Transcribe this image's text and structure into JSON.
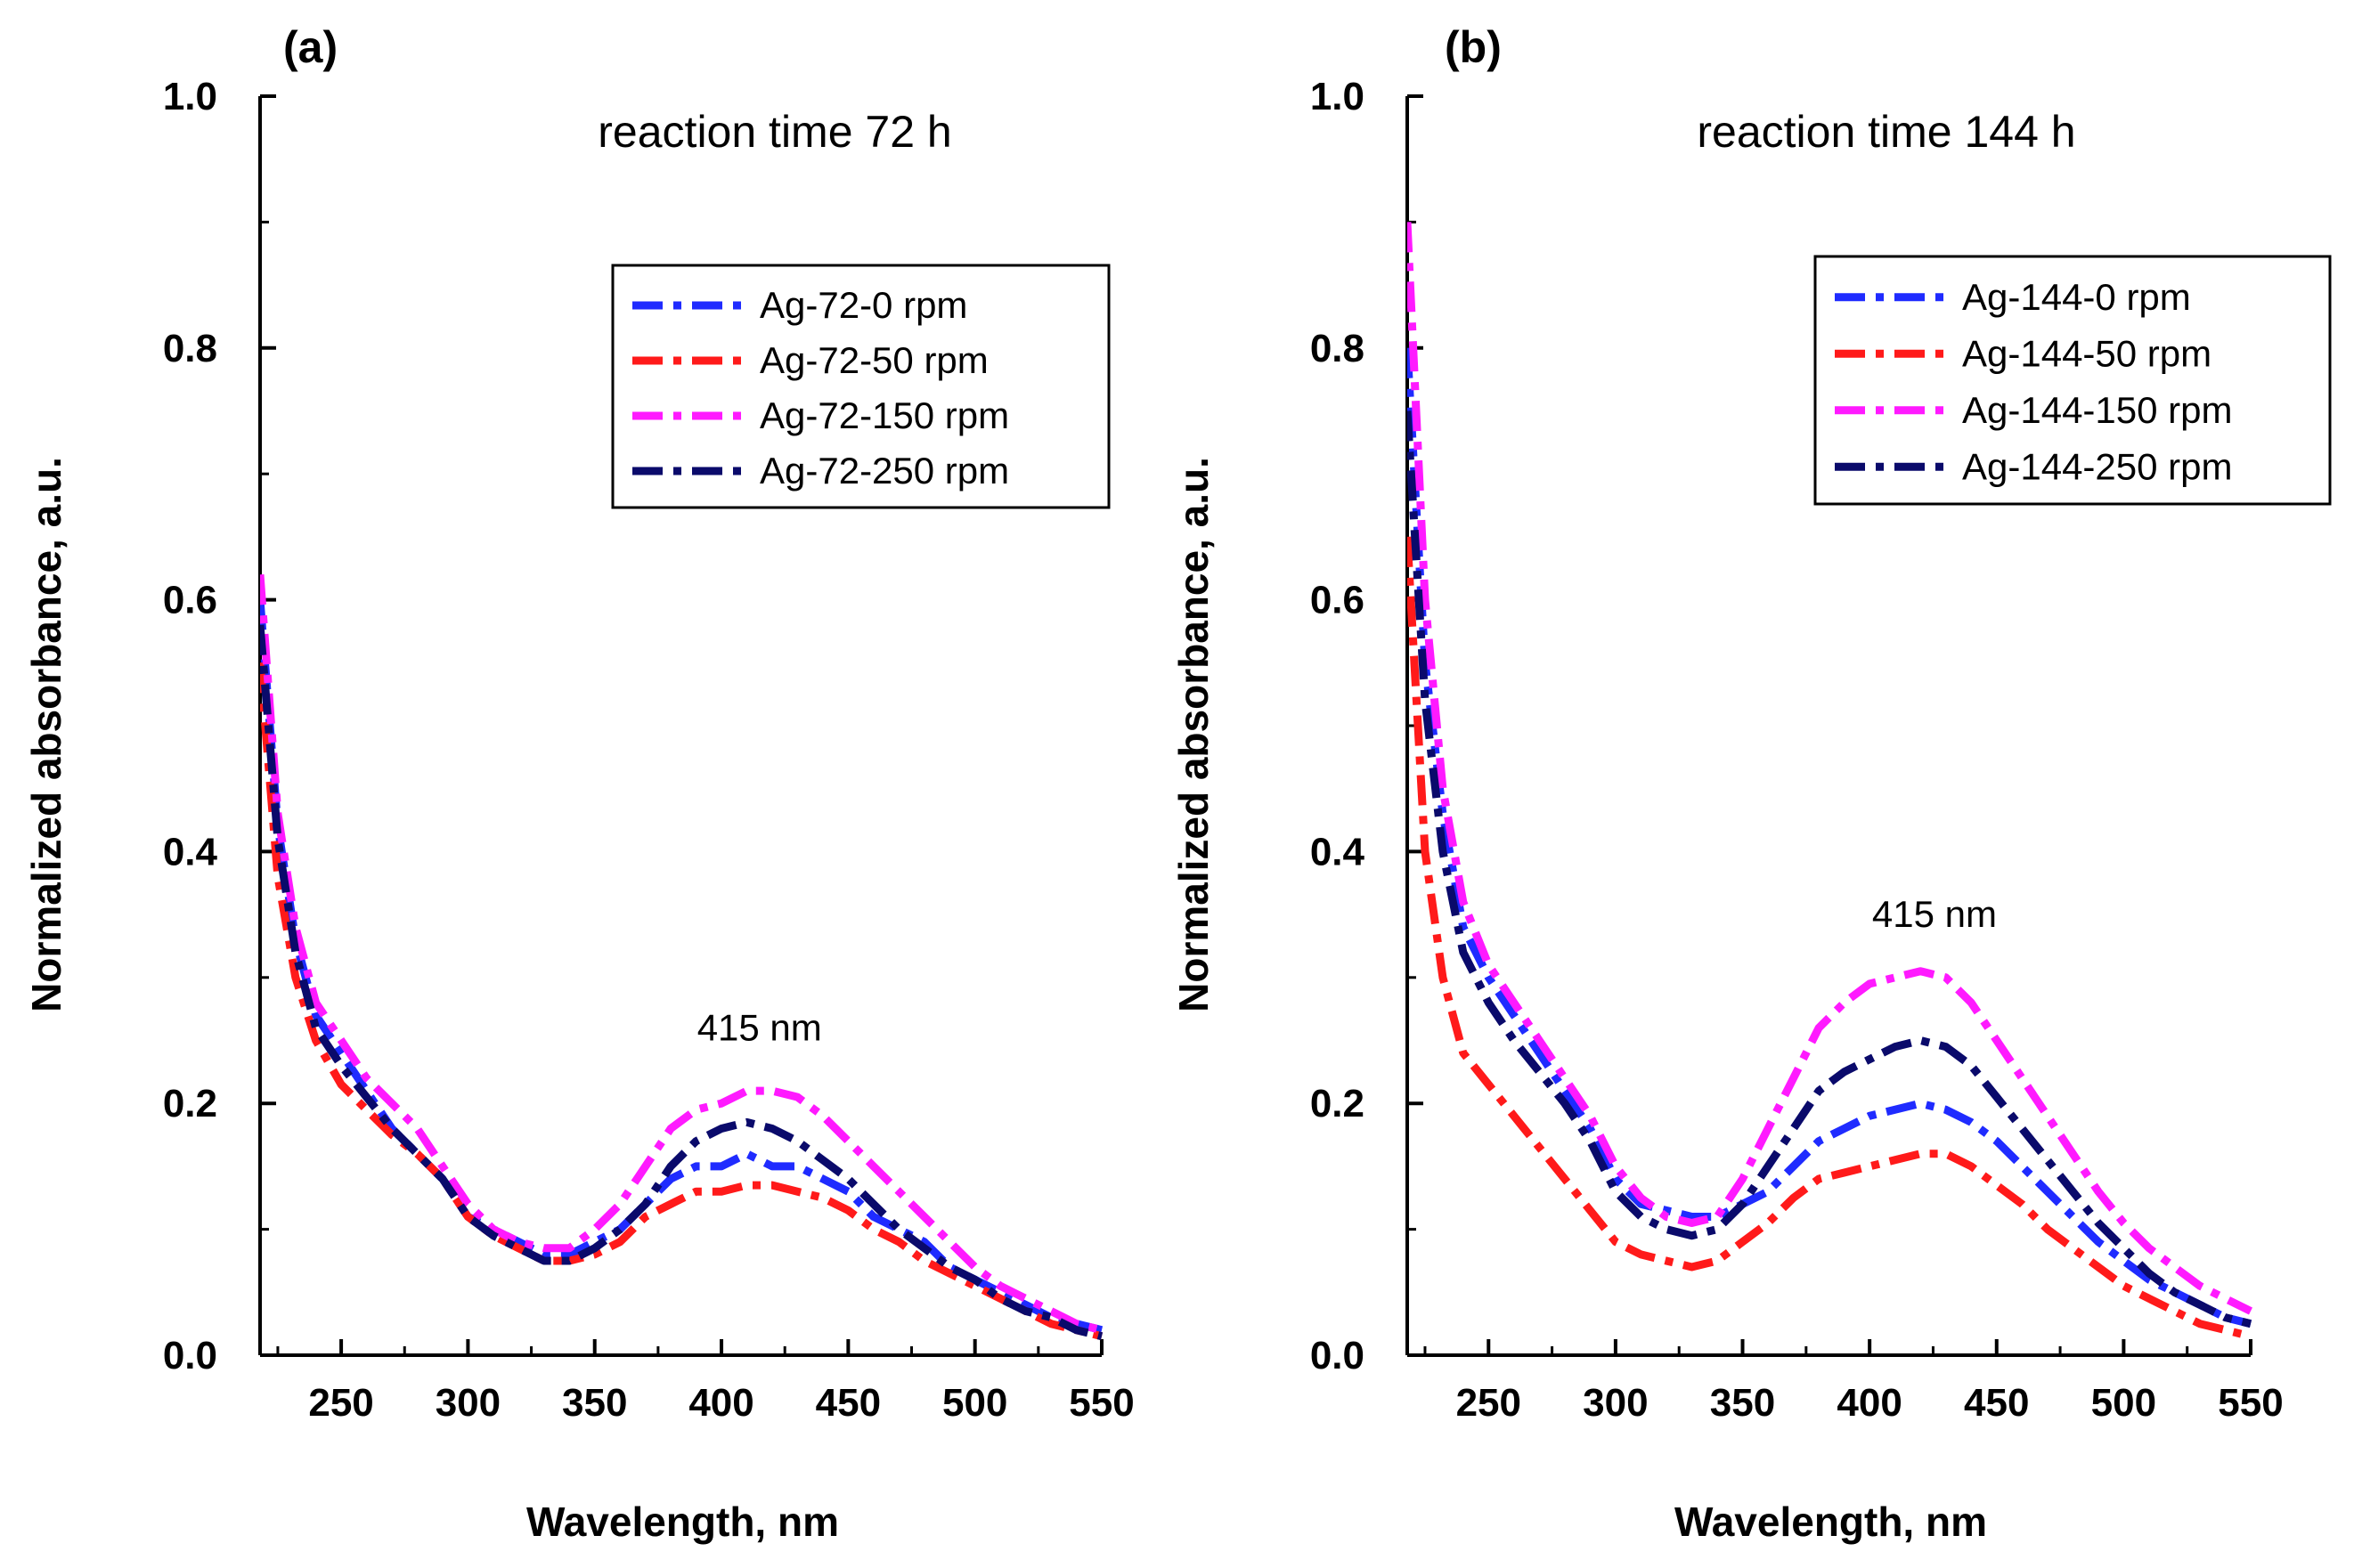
{
  "chart_data": [
    {
      "type": "line",
      "panel_label": "(a)",
      "title": "reaction time 72 h",
      "xlabel": "Wavelength, nm",
      "ylabel": "Normalized absorbance, a.u.",
      "xlim": [
        218,
        550
      ],
      "ylim": [
        0,
        1.0
      ],
      "xticks": [
        250,
        300,
        350,
        400,
        450,
        500,
        550
      ],
      "yticks": [
        0.0,
        0.2,
        0.4,
        0.6,
        0.8,
        1.0
      ],
      "ytick_labels": [
        "0.0",
        "0.2",
        "0.4",
        "0.6",
        "0.8",
        "1.0"
      ],
      "legend_position": "top-right",
      "annotation": {
        "text": "415 nm",
        "x": 415,
        "y": 0.25
      },
      "x": [
        218,
        225,
        232,
        240,
        250,
        260,
        270,
        280,
        290,
        300,
        310,
        320,
        330,
        340,
        350,
        360,
        370,
        380,
        390,
        400,
        410,
        420,
        430,
        440,
        450,
        460,
        470,
        480,
        490,
        500,
        510,
        520,
        530,
        540,
        550
      ],
      "series": [
        {
          "name": "Ag-72-0 rpm",
          "color": "#1f2bff",
          "values": [
            0.6,
            0.42,
            0.33,
            0.27,
            0.24,
            0.21,
            0.18,
            0.16,
            0.14,
            0.11,
            0.1,
            0.09,
            0.08,
            0.08,
            0.09,
            0.1,
            0.12,
            0.14,
            0.15,
            0.15,
            0.16,
            0.15,
            0.15,
            0.14,
            0.13,
            0.11,
            0.1,
            0.09,
            0.07,
            0.06,
            0.05,
            0.04,
            0.03,
            0.025,
            0.02
          ]
        },
        {
          "name": "Ag-72-50 rpm",
          "color": "#ff1a1a",
          "values": [
            0.55,
            0.38,
            0.3,
            0.25,
            0.215,
            0.195,
            0.175,
            0.16,
            0.14,
            0.11,
            0.095,
            0.085,
            0.075,
            0.075,
            0.08,
            0.09,
            0.11,
            0.12,
            0.13,
            0.13,
            0.135,
            0.135,
            0.13,
            0.125,
            0.115,
            0.1,
            0.09,
            0.075,
            0.065,
            0.055,
            0.045,
            0.035,
            0.025,
            0.02,
            0.015
          ]
        },
        {
          "name": "Ag-72-150 rpm",
          "color": "#ff1aff",
          "values": [
            0.62,
            0.43,
            0.34,
            0.28,
            0.25,
            0.22,
            0.2,
            0.18,
            0.15,
            0.12,
            0.1,
            0.09,
            0.085,
            0.085,
            0.1,
            0.12,
            0.15,
            0.18,
            0.195,
            0.2,
            0.21,
            0.21,
            0.205,
            0.19,
            0.17,
            0.15,
            0.13,
            0.11,
            0.09,
            0.07,
            0.055,
            0.045,
            0.035,
            0.025,
            0.02
          ]
        },
        {
          "name": "Ag-72-250 rpm",
          "color": "#0a0a6b",
          "values": [
            0.58,
            0.41,
            0.32,
            0.26,
            0.23,
            0.205,
            0.18,
            0.16,
            0.14,
            0.11,
            0.095,
            0.085,
            0.075,
            0.075,
            0.085,
            0.1,
            0.12,
            0.15,
            0.17,
            0.18,
            0.185,
            0.18,
            0.17,
            0.155,
            0.14,
            0.12,
            0.1,
            0.085,
            0.07,
            0.06,
            0.045,
            0.035,
            0.03,
            0.02,
            0.015
          ]
        }
      ]
    },
    {
      "type": "line",
      "panel_label": "(b)",
      "title": "reaction time 144 h",
      "xlabel": "Wavelength, nm",
      "ylabel": "Normalized absorbance, a.u.",
      "xlim": [
        218,
        550
      ],
      "ylim": [
        0,
        1.0
      ],
      "xticks": [
        250,
        300,
        350,
        400,
        450,
        500,
        550
      ],
      "yticks": [
        0.0,
        0.2,
        0.4,
        0.6,
        0.8,
        1.0
      ],
      "ytick_labels": [
        "0.0",
        "0.2",
        "0.4",
        "0.6",
        "0.8",
        "1.0"
      ],
      "legend_position": "top-right",
      "annotation": {
        "text": "415 nm",
        "x": 415,
        "y": 0.34
      },
      "x": [
        218,
        225,
        232,
        240,
        250,
        260,
        270,
        280,
        290,
        300,
        310,
        320,
        330,
        340,
        350,
        360,
        370,
        380,
        390,
        400,
        410,
        420,
        430,
        440,
        450,
        460,
        470,
        480,
        490,
        500,
        510,
        520,
        530,
        540,
        550
      ],
      "series": [
        {
          "name": "Ag-144-0 rpm",
          "color": "#1f2bff",
          "values": [
            0.8,
            0.55,
            0.43,
            0.34,
            0.3,
            0.27,
            0.24,
            0.21,
            0.18,
            0.14,
            0.12,
            0.115,
            0.11,
            0.11,
            0.12,
            0.13,
            0.15,
            0.17,
            0.18,
            0.19,
            0.195,
            0.2,
            0.195,
            0.185,
            0.17,
            0.15,
            0.13,
            0.11,
            0.09,
            0.075,
            0.06,
            0.05,
            0.04,
            0.03,
            0.025
          ]
        },
        {
          "name": "Ag-144-50 rpm",
          "color": "#ff1a1a",
          "values": [
            0.65,
            0.4,
            0.3,
            0.24,
            0.215,
            0.19,
            0.165,
            0.14,
            0.115,
            0.09,
            0.08,
            0.075,
            0.07,
            0.075,
            0.09,
            0.105,
            0.125,
            0.14,
            0.145,
            0.15,
            0.155,
            0.16,
            0.16,
            0.15,
            0.135,
            0.12,
            0.1,
            0.085,
            0.07,
            0.055,
            0.045,
            0.035,
            0.025,
            0.02,
            0.015
          ]
        },
        {
          "name": "Ag-144-150 rpm",
          "color": "#ff1aff",
          "values": [
            0.9,
            0.6,
            0.45,
            0.36,
            0.31,
            0.28,
            0.25,
            0.22,
            0.19,
            0.15,
            0.125,
            0.11,
            0.105,
            0.11,
            0.14,
            0.18,
            0.22,
            0.26,
            0.28,
            0.295,
            0.3,
            0.305,
            0.3,
            0.28,
            0.25,
            0.22,
            0.19,
            0.16,
            0.13,
            0.105,
            0.085,
            0.07,
            0.055,
            0.045,
            0.035
          ]
        },
        {
          "name": "Ag-144-250 rpm",
          "color": "#0a0a6b",
          "values": [
            0.75,
            0.52,
            0.4,
            0.32,
            0.28,
            0.25,
            0.225,
            0.2,
            0.17,
            0.13,
            0.11,
            0.1,
            0.095,
            0.1,
            0.12,
            0.15,
            0.18,
            0.21,
            0.225,
            0.235,
            0.245,
            0.25,
            0.245,
            0.23,
            0.205,
            0.18,
            0.155,
            0.13,
            0.105,
            0.085,
            0.065,
            0.05,
            0.04,
            0.03,
            0.025
          ]
        }
      ]
    }
  ]
}
